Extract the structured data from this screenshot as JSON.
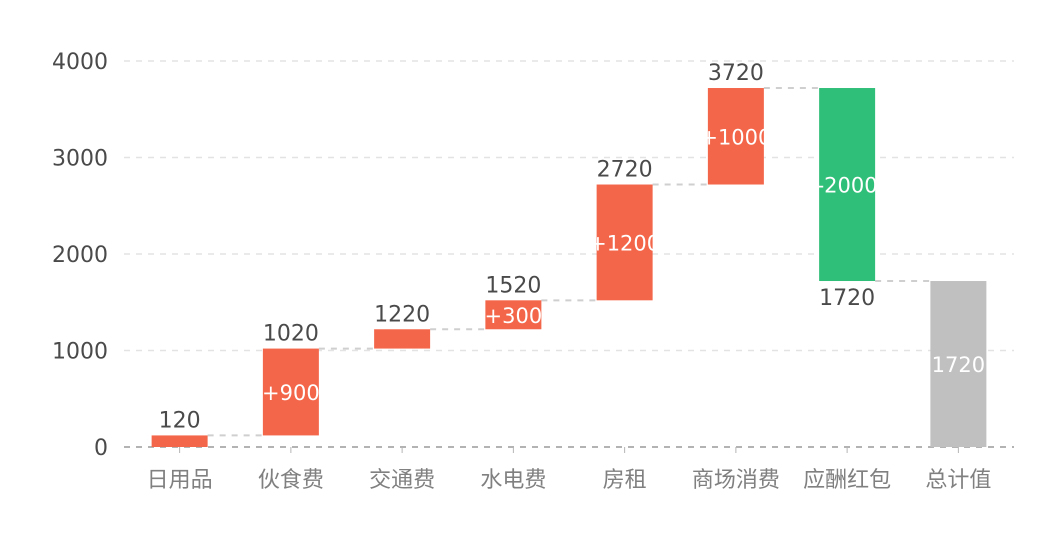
{
  "chart_data": {
    "type": "bar",
    "subtype": "waterfall",
    "categories": [
      "日用品",
      "伙食费",
      "交通费",
      "水电费",
      "房租",
      "商场消费",
      "应酬红包",
      "总计值"
    ],
    "deltas": [
      120,
      900,
      200,
      300,
      1200,
      1000,
      -2000,
      1720
    ],
    "cumulative": [
      120,
      1020,
      1220,
      1520,
      2720,
      3720,
      1720,
      1720
    ],
    "value_labels": [
      "120",
      "1020",
      "1220",
      "1520",
      "2720",
      "3720",
      "1720",
      "1720"
    ],
    "delta_labels": [
      "",
      "+900",
      "",
      "+300",
      "+1200",
      "+1000",
      "-2000",
      "1720"
    ],
    "bar_kinds": [
      "increase",
      "increase",
      "increase",
      "increase",
      "increase",
      "increase",
      "decrease",
      "total"
    ],
    "ylim": [
      0,
      4000
    ],
    "yticks": [
      0,
      1000,
      2000,
      3000,
      4000
    ],
    "ytick_labels": [
      "0",
      "1000",
      "2000",
      "3000",
      "4000"
    ],
    "grid": true,
    "title": "",
    "xlabel": "",
    "ylabel": ""
  },
  "colors": {
    "increase": "#f4664a",
    "decrease": "#30bf78",
    "total": "#c0c0c0",
    "grid": "#e3e3e3",
    "connector": "#cfcfcf"
  }
}
